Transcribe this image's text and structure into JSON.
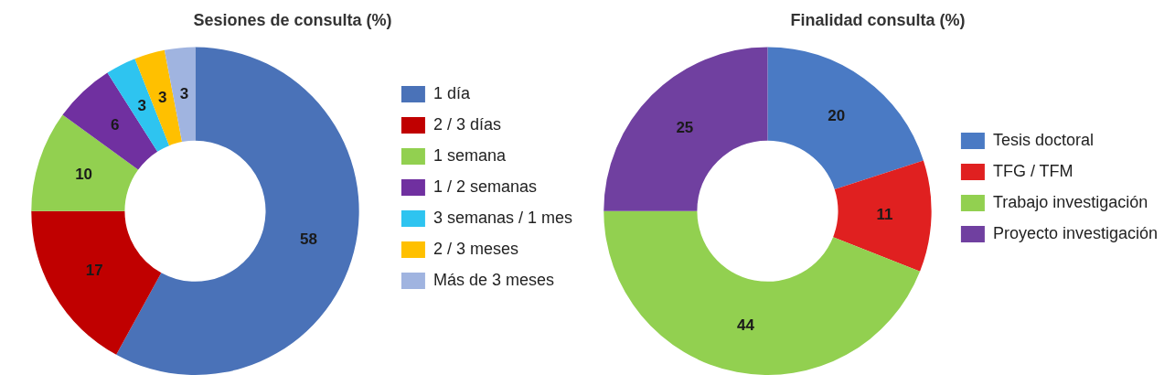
{
  "chart_data": [
    {
      "type": "donut",
      "title": "Sesiones de consulta (%)",
      "categories": [
        "1 día",
        "2 / 3 días",
        "1 semana",
        "1 / 2 semanas",
        "3 semanas / 1 mes",
        "2 / 3 meses",
        "Más de 3 meses"
      ],
      "values": [
        58,
        17,
        10,
        6,
        3,
        3,
        3
      ],
      "colors": [
        "#4a72b8",
        "#c00000",
        "#92d050",
        "#7030a0",
        "#2ec4f0",
        "#ffc000",
        "#a0b4e0"
      ],
      "legend": "right",
      "data_labels": true
    },
    {
      "type": "donut",
      "title": "Finalidad consulta (%)",
      "categories": [
        "Tesis doctoral",
        "TFG / TFM",
        "Trabajo investigación",
        "Proyecto investigación"
      ],
      "values": [
        20,
        11,
        44,
        25
      ],
      "colors": [
        "#4a7ac4",
        "#e02020",
        "#92d050",
        "#7040a0"
      ],
      "legend": "right",
      "data_labels": true
    }
  ]
}
